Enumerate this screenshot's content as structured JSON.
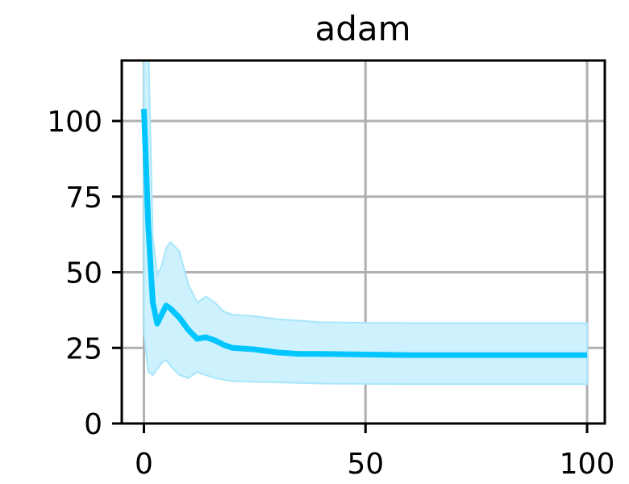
{
  "chart_data": {
    "type": "line",
    "title": "adam",
    "xlabel": "",
    "ylabel": "",
    "xlim": [
      -5,
      104
    ],
    "ylim": [
      0,
      120
    ],
    "xticks": [
      0,
      50,
      100
    ],
    "yticks": [
      0,
      25,
      50,
      75,
      100
    ],
    "xtick_labels": [
      "0",
      "50",
      "100"
    ],
    "ytick_labels": [
      "0",
      "25",
      "50",
      "75",
      "100"
    ],
    "grid": true,
    "legend": "none",
    "series": [
      {
        "color": "#00c5ff",
        "band_color": "#cdf1fd",
        "x": [
          0,
          1,
          2,
          3,
          4,
          5,
          6,
          8,
          10,
          12,
          14,
          16,
          18,
          20,
          25,
          30,
          35,
          40,
          50,
          60,
          70,
          80,
          90,
          100
        ],
        "y": [
          104,
          65,
          40,
          33,
          36,
          39,
          38,
          35,
          31,
          28,
          28.5,
          27.5,
          26,
          25,
          24.5,
          23.5,
          23,
          23,
          22.8,
          22.6,
          22.6,
          22.6,
          22.6,
          22.6
        ],
        "upper": [
          125,
          125,
          62,
          49,
          52,
          58,
          60,
          57,
          46,
          40,
          42,
          40,
          37,
          36,
          35.5,
          34.5,
          34,
          33.5,
          33.3,
          33.2,
          33.2,
          33.2,
          33.2,
          33.2
        ],
        "lower": [
          30,
          17,
          16,
          18,
          20,
          21,
          19,
          16,
          15,
          17,
          16,
          15,
          14.5,
          14,
          13.8,
          13.6,
          13.4,
          13.2,
          13.1,
          13,
          13,
          13,
          13,
          13
        ]
      }
    ]
  }
}
